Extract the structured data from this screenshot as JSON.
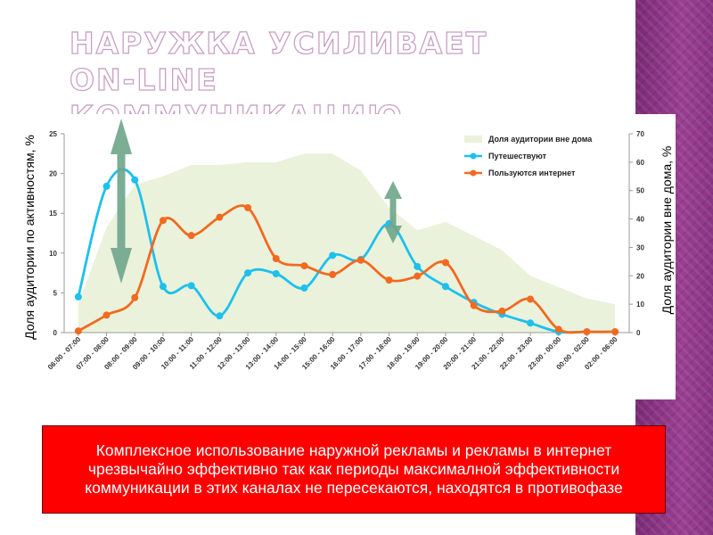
{
  "slide": {
    "title": "Наружка усиливает on-line коммуникацию",
    "note": "Комплексное использование наружной рекламы и рекламы в интернет чрезвычайно эффективно так как периоды максималной эффективности коммуникации в этих каналах не пересекаются, находятся в противофазе"
  },
  "chart_data": {
    "type": "line",
    "categories": [
      "06:00 - 07:00",
      "07:00 - 08:00",
      "08:00 - 09:00",
      "09:00 - 10:00",
      "10:00 - 11:00",
      "11:00 - 12:00",
      "12:00 - 13:00",
      "13:00 - 14:00",
      "14:00 - 15:00",
      "15:00 - 16:00",
      "16:00 - 17:00",
      "17:00 - 18:00",
      "18:00 - 19:00",
      "19:00 - 20:00",
      "20:00 - 21:00",
      "21:00 - 22:00",
      "22:00 - 23:00",
      "23:00 - 00:00",
      "00:00 - 02:00",
      "02:00 - 06:00"
    ],
    "ylabel": "Доля аудитории по активностям, %",
    "ylabel_right": "Доля аудитории вне дома, %",
    "ylim": [
      0,
      25
    ],
    "ylim_right": [
      0,
      70
    ],
    "yticks": [
      0,
      5,
      10,
      15,
      20,
      25
    ],
    "yticks_right": [
      0,
      10,
      20,
      30,
      40,
      50,
      60,
      70
    ],
    "legend_position": "top-right",
    "grid": false,
    "series": [
      {
        "name": "Доля аудитории вне дома",
        "kind": "area",
        "axis": "right",
        "color": "#eaf2dc",
        "values": [
          10,
          37,
          52,
          55,
          59,
          59,
          60,
          60,
          63,
          63,
          57,
          44,
          36,
          39,
          34,
          29,
          20,
          16,
          12,
          10
        ]
      },
      {
        "name": "Путешествуют",
        "kind": "line",
        "axis": "left",
        "color": "#1ec0ec",
        "values": [
          4.5,
          18.4,
          19.2,
          5.8,
          5.9,
          2.1,
          7.5,
          7.4,
          5.6,
          9.7,
          9.2,
          13.7,
          8.3,
          5.8,
          3.8,
          2.3,
          1.2,
          0.1,
          0.1,
          0.1
        ]
      },
      {
        "name": "Пользуются  интернет",
        "kind": "line",
        "axis": "left",
        "color": "#f26a1f",
        "values": [
          0.2,
          2.2,
          4.4,
          14.1,
          12.2,
          14.5,
          15.7,
          9.3,
          8.4,
          7.3,
          9.1,
          6.6,
          7.1,
          8.8,
          3.4,
          2.7,
          4.2,
          0.4,
          0.1,
          0.1
        ]
      }
    ],
    "annotations": [
      {
        "kind": "double-arrow",
        "description": "large vertical double-headed arrow",
        "color": "#6ea58b"
      },
      {
        "kind": "double-arrow",
        "description": "small vertical double-headed arrow",
        "color": "#6ea58b"
      }
    ]
  }
}
